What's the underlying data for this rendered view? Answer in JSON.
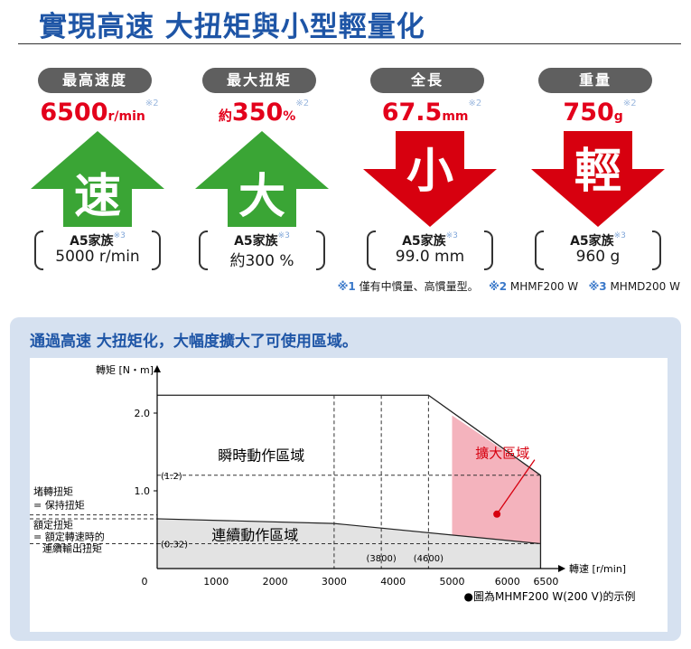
{
  "header": {
    "title": "實現高速 大扭矩與小型輕量化"
  },
  "cards": [
    {
      "label": "最高速度",
      "prefix": "",
      "value": "6500",
      "unit": "r/min",
      "note": "※2",
      "glyph": "速",
      "family": "A5家族",
      "family_note": "※3",
      "previous": "5000 r/min",
      "direction": "up",
      "color": "#3aa535"
    },
    {
      "label": "最大扭矩",
      "prefix": "約",
      "value": "350",
      "unit": "%",
      "note": "※2",
      "glyph": "大",
      "family": "A5家族",
      "family_note": "※3",
      "previous": "約300 %",
      "direction": "up",
      "color": "#3aa535"
    },
    {
      "label": "全長",
      "prefix": "",
      "value": "67.5",
      "unit": "mm",
      "note": "※2",
      "glyph": "小",
      "family": "A5家族",
      "family_note": "※3",
      "previous": "99.0 mm",
      "direction": "down",
      "color": "#d7000f"
    },
    {
      "label": "重量",
      "prefix": "",
      "value": "750",
      "unit": "g",
      "note": "※2",
      "glyph": "輕",
      "family": "A5家族",
      "family_note": "※3",
      "previous": "960 g",
      "direction": "down",
      "color": "#d7000f"
    }
  ],
  "footnotes": [
    {
      "mark": "※1",
      "text": "僅有中慣量、高慣量型。"
    },
    {
      "mark": "※2",
      "text": "MHMF200 W"
    },
    {
      "mark": "※3",
      "text": "MHMD200 W"
    }
  ],
  "panel": {
    "title": "通過高速 大扭矩化，大幅度擴大了可使用區域。"
  },
  "chart_data": {
    "type": "area",
    "xlabel": "轉速 [r/min]",
    "ylabel": "轉矩 [N・m]",
    "xlim": [
      0,
      6500
    ],
    "ylim": [
      0,
      2.3
    ],
    "x_ticks": [
      "0",
      "1000",
      "2000",
      "3000",
      "4000",
      "5000",
      "6000",
      "6500"
    ],
    "y_ticks": [
      "1.0",
      "2.0"
    ],
    "dashed_x_labels": [
      "(3800)",
      "(4600)"
    ],
    "dashed_x": [
      3000,
      3800,
      4600
    ],
    "dashed_y_labels": [
      "(1.2)",
      "(0.32)"
    ],
    "series": [
      {
        "name": "瞬時動作區域",
        "x": [
          0,
          4600,
          6500
        ],
        "y": [
          2.23,
          2.23,
          1.2
        ]
      },
      {
        "name": "連續動作區域",
        "x": [
          0,
          3000,
          6500
        ],
        "y": [
          0.64,
          0.58,
          0.32
        ]
      },
      {
        "name": "擴大區域",
        "x": [
          5000,
          6500
        ],
        "y_top": [
          1.97,
          1.2
        ],
        "y_bottom": [
          0,
          0
        ]
      }
    ],
    "region_labels": {
      "instant": "瞬時動作區域",
      "continuous": "連續動作區域",
      "expanded": "擴大區域"
    },
    "left_labels": {
      "stall_1": "堵轉扭矩",
      "stall_2": "= 保持扭矩",
      "rated_1": "額定扭矩",
      "rated_2": "= 額定轉速時的",
      "rated_3": "連續輸出扭矩"
    },
    "footnote": "●圖為MHMF200 W(200 V)的示例"
  }
}
